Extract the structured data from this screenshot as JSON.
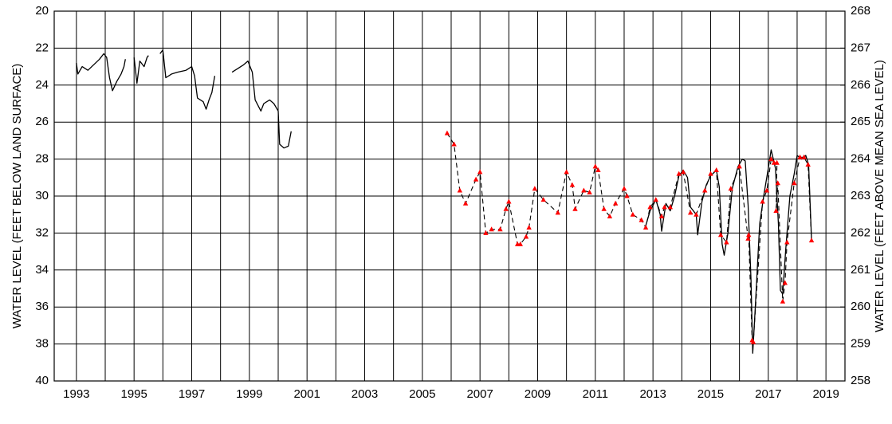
{
  "chart_data": {
    "type": "line",
    "ylabel": "WATER LEVEL (FEET BELOW LAND SURFACE)",
    "y2label": "WATER LEVEL (FEET ABOVE MEAN SEA LEVEL)",
    "xlim": [
      1992.23,
      2019.66
    ],
    "xticks": [
      1993,
      1995,
      1997,
      1999,
      2001,
      2003,
      2005,
      2007,
      2009,
      2011,
      2013,
      2015,
      2017,
      2019
    ],
    "minor_xticks": [
      1994,
      1996,
      1998,
      2000,
      2002,
      2004,
      2006,
      2008,
      2010,
      2012,
      2014,
      2016,
      2018
    ],
    "ylim": [
      40,
      20
    ],
    "yticks": [
      20,
      22,
      24,
      26,
      28,
      30,
      32,
      34,
      36,
      38,
      40
    ],
    "y2lim": [
      258,
      268
    ],
    "y2ticks": [
      258,
      259,
      260,
      261,
      262,
      263,
      264,
      265,
      266,
      267,
      268
    ],
    "grid": true,
    "series": [
      {
        "color": "#000000",
        "line_style": "solid",
        "marker": "none",
        "x": [
          1993.0,
          1993.05,
          1993.2,
          1993.4,
          1993.6,
          1993.8,
          1993.95,
          1994.05,
          1994.15,
          1994.25,
          1994.4,
          1994.55,
          1994.65,
          1994.7,
          null,
          1995.0,
          1995.1,
          1995.2,
          1995.35,
          1995.45,
          1995.5,
          null,
          1995.9,
          1996.0,
          1996.1,
          1996.3,
          1996.5,
          1996.8,
          1997.0,
          1997.1,
          1997.2,
          1997.4,
          1997.5,
          1997.6,
          1997.7,
          1997.8,
          null,
          1998.4,
          1998.6,
          1998.8,
          1998.95,
          1999.1,
          1999.2,
          1999.4,
          1999.5,
          1999.7,
          1999.85,
          2000.0,
          2000.05,
          2000.2,
          2000.35,
          2000.45,
          null,
          2012.75,
          2012.9,
          2013.1,
          2013.25,
          2013.3,
          2013.45,
          2013.6,
          2013.75,
          2013.9,
          2014.05,
          2014.2,
          2014.3,
          2014.5,
          2014.55,
          2014.7,
          2014.85,
          2015.0,
          2015.2,
          2015.3,
          2015.4,
          2015.47,
          2015.6,
          2015.75,
          2015.95,
          2016.1,
          2016.2,
          2016.3,
          2016.4,
          2016.46,
          2016.55,
          2016.7,
          2016.85,
          2017.0,
          2017.1,
          2017.25,
          2017.35,
          2017.42,
          2017.5,
          2017.6,
          2017.75,
          2017.9,
          2018.0,
          2018.15,
          2018.3,
          2018.4,
          2018.5
        ],
        "values": [
          22.8,
          23.4,
          23.0,
          23.2,
          22.9,
          22.6,
          22.3,
          22.5,
          23.6,
          24.3,
          23.8,
          23.4,
          23.0,
          22.6,
          null,
          22.5,
          23.9,
          22.7,
          23.0,
          22.5,
          22.4,
          null,
          22.3,
          22.1,
          23.6,
          23.4,
          23.3,
          23.2,
          23.0,
          23.5,
          24.7,
          24.9,
          25.3,
          24.8,
          24.4,
          23.5,
          null,
          23.3,
          23.1,
          22.9,
          22.7,
          23.3,
          24.8,
          25.4,
          25.0,
          24.8,
          25.0,
          25.4,
          27.2,
          27.4,
          27.3,
          26.5,
          null,
          31.6,
          30.8,
          30.2,
          31.0,
          31.9,
          30.4,
          30.8,
          30.0,
          28.9,
          28.6,
          29.0,
          30.6,
          31.0,
          32.1,
          30.3,
          29.4,
          28.9,
          28.6,
          29.5,
          32.6,
          33.2,
          32.0,
          29.6,
          28.4,
          28.0,
          28.1,
          30.5,
          34.5,
          38.5,
          36.0,
          31.5,
          29.9,
          28.5,
          27.5,
          28.5,
          31.5,
          35.1,
          35.3,
          33.0,
          30.0,
          28.8,
          27.8,
          28.0,
          27.8,
          28.3,
          32.3
        ]
      },
      {
        "color": "#ff0000",
        "line_color": "#000000",
        "line_style": "dashed",
        "marker": "triangle",
        "x": [
          2005.86,
          2006.1,
          2006.3,
          2006.5,
          2006.86,
          2007.0,
          2007.2,
          2007.4,
          2007.7,
          2007.9,
          2008.0,
          2008.3,
          2008.4,
          2008.6,
          2008.7,
          2008.9,
          2009.2,
          2009.7,
          2010.0,
          2010.2,
          2010.3,
          2010.6,
          2010.8,
          2011.0,
          2011.1,
          2011.3,
          2011.5,
          2011.7,
          2012.0,
          2012.1,
          2012.3,
          2012.6,
          2012.75,
          2012.9,
          2013.1,
          2013.3,
          2013.4,
          2013.6,
          2013.9,
          2014.05,
          2014.3,
          2014.5,
          2014.8,
          2015.0,
          2015.2,
          2015.35,
          2015.55,
          2015.7,
          2016.0,
          2016.3,
          2016.32,
          2016.44,
          2016.48,
          2016.8,
          2016.95,
          2017.1,
          2017.2,
          2017.3,
          2017.27,
          2017.33,
          2017.5,
          2017.58,
          2017.65,
          2017.9,
          2018.1,
          2018.24,
          2018.38,
          2018.5
        ],
        "values": [
          26.6,
          27.2,
          29.7,
          30.4,
          29.1,
          28.7,
          32.0,
          31.8,
          31.8,
          30.7,
          30.3,
          32.6,
          32.6,
          32.2,
          31.7,
          29.6,
          30.2,
          30.9,
          28.7,
          29.4,
          30.7,
          29.7,
          29.8,
          28.4,
          28.6,
          30.7,
          31.1,
          30.4,
          29.6,
          30.0,
          31.0,
          31.3,
          31.7,
          30.6,
          30.2,
          31.1,
          30.6,
          30.6,
          28.8,
          28.7,
          30.9,
          31.0,
          29.7,
          28.8,
          28.6,
          32.1,
          32.5,
          29.6,
          28.4,
          32.3,
          32.1,
          37.8,
          37.9,
          30.3,
          29.7,
          28.0,
          28.2,
          28.2,
          30.8,
          29.3,
          35.7,
          34.7,
          32.5,
          29.3,
          27.9,
          27.9,
          28.3,
          32.4
        ]
      }
    ]
  }
}
